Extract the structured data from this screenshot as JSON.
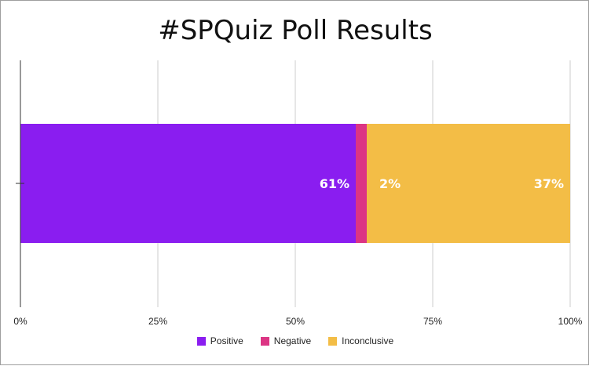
{
  "chart_data": {
    "type": "bar",
    "orientation": "horizontal",
    "stacked": true,
    "title": "#SPQuiz Poll Results",
    "categories": [
      ""
    ],
    "series": [
      {
        "name": "Positive",
        "values": [
          61
        ],
        "label": "61%",
        "color": "#8a1df0"
      },
      {
        "name": "Negative",
        "values": [
          2
        ],
        "label": "2%",
        "color": "#dc3584"
      },
      {
        "name": "Inconclusive",
        "values": [
          37
        ],
        "label": "37%",
        "color": "#f3bd46"
      }
    ],
    "x_ticks": [
      "0%",
      "25%",
      "50%",
      "75%",
      "100%"
    ],
    "xlim": [
      0,
      100
    ],
    "grid": true,
    "legend_position": "bottom"
  }
}
